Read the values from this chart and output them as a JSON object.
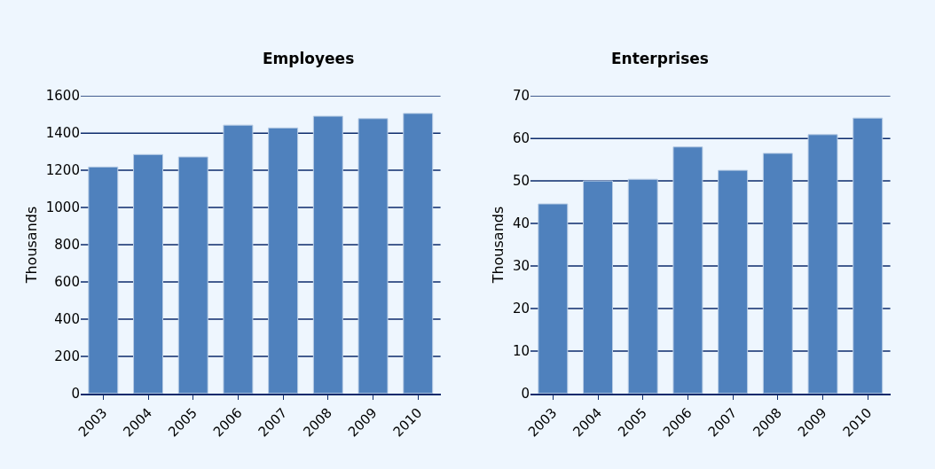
{
  "chart_data": [
    {
      "type": "bar",
      "title": "Employees",
      "ylabel": "Thousands",
      "categories": [
        "2003",
        "2004",
        "2005",
        "2006",
        "2007",
        "2008",
        "2009",
        "2010"
      ],
      "series": [
        {
          "color": "#4f81bd",
          "values": [
            1218,
            1285,
            1272,
            1443,
            1428,
            1491,
            1478,
            1506
          ]
        }
      ],
      "ylim": [
        0,
        1600
      ],
      "yticks": [
        0,
        200,
        400,
        600,
        800,
        1000,
        1200,
        1400,
        1600
      ],
      "grid": "y"
    },
    {
      "type": "bar",
      "title": "Enterprises",
      "ylabel": "Thousands",
      "categories": [
        "2003",
        "2004",
        "2005",
        "2006",
        "2007",
        "2008",
        "2009",
        "2010"
      ],
      "series": [
        {
          "color": "#4f81bd",
          "values": [
            44.6,
            50.0,
            50.4,
            58.0,
            52.5,
            56.5,
            60.9,
            64.8
          ]
        }
      ],
      "ylim": [
        0,
        70
      ],
      "yticks": [
        0,
        10,
        20,
        30,
        40,
        50,
        60,
        70
      ],
      "grid": "y"
    }
  ]
}
